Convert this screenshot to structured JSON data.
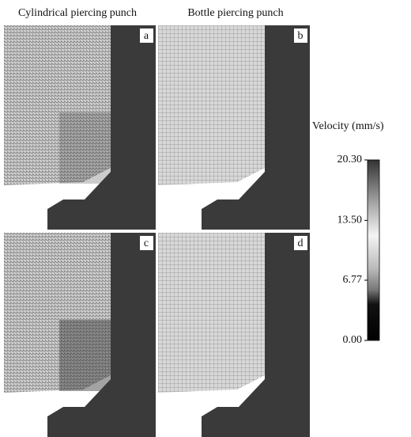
{
  "column_titles": [
    "Cylindrical piercing punch",
    "Bottle piercing punch"
  ],
  "panels": [
    {
      "label": "a"
    },
    {
      "label": "b"
    },
    {
      "label": "c"
    },
    {
      "label": "d"
    }
  ],
  "colorbar": {
    "label": "Velocity (mm/s)",
    "lim": [
      0,
      20.3
    ],
    "ticks": [
      {
        "value": 20.3,
        "label": "20.30"
      },
      {
        "value": 13.5,
        "label": "13.50"
      },
      {
        "value": 6.77,
        "label": "6.77"
      },
      {
        "value": 0,
        "label": "0.00"
      }
    ]
  }
}
